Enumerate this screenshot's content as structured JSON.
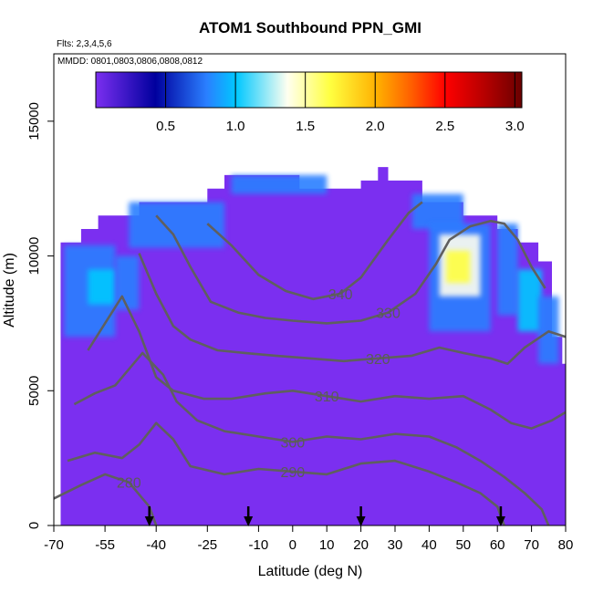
{
  "chart_data": {
    "type": "heatmap",
    "title": "ATOM1 Southbound PPN_GMI",
    "note_flights": "Flts: 2,3,4,5,6",
    "note_dates": "MMDD: 0801,0803,0806,0808,0812",
    "xlabel": "Latitude (deg N)",
    "ylabel": "Altitude (m)",
    "xlim": [
      -70,
      80
    ],
    "ylim": [
      0,
      17500
    ],
    "x_ticks": [
      -70,
      -55,
      -40,
      -25,
      -10,
      0,
      10,
      20,
      30,
      40,
      50,
      60,
      70,
      80
    ],
    "x_tick_labels": [
      "-70",
      "-55",
      "-40",
      "-25",
      "-10",
      "0",
      "10",
      "20",
      "30",
      "40",
      "50",
      "60",
      "70",
      "80"
    ],
    "y_ticks": [
      0,
      5000,
      10000,
      15000
    ],
    "y_tick_labels": [
      "0",
      "5000",
      "10000",
      "15000"
    ],
    "colorbar": {
      "range": [
        0,
        3.05
      ],
      "ticks": [
        0.5,
        1.0,
        1.5,
        2.0,
        2.5,
        3.0
      ],
      "tick_labels": [
        "0.5",
        "1.0",
        "1.5",
        "2.0",
        "2.5",
        "3.0"
      ],
      "colors": [
        "#7b2ff0",
        "#00009e",
        "#2a7fff",
        "#00c8ff",
        "#fffff0",
        "#ffff40",
        "#ffb000",
        "#ff6000",
        "#ff0000",
        "#b00000",
        "#6a0000"
      ]
    },
    "field_outline": [
      [
        -68,
        0
      ],
      [
        -68,
        10500
      ],
      [
        -62,
        10500
      ],
      [
        -62,
        11000
      ],
      [
        -57,
        11000
      ],
      [
        -57,
        11500
      ],
      [
        -45,
        11500
      ],
      [
        -45,
        12000
      ],
      [
        -25,
        12000
      ],
      [
        -25,
        12500
      ],
      [
        -20,
        12500
      ],
      [
        -20,
        13000
      ],
      [
        2,
        13000
      ],
      [
        2,
        12500
      ],
      [
        20,
        12500
      ],
      [
        20,
        12800
      ],
      [
        25,
        12800
      ],
      [
        25,
        13300
      ],
      [
        28,
        13300
      ],
      [
        28,
        12800
      ],
      [
        38,
        12800
      ],
      [
        38,
        12000
      ],
      [
        50,
        12000
      ],
      [
        50,
        11500
      ],
      [
        60,
        11500
      ],
      [
        60,
        11000
      ],
      [
        66,
        11000
      ],
      [
        66,
        10500
      ],
      [
        72,
        10500
      ],
      [
        72,
        9800
      ],
      [
        76,
        9800
      ],
      [
        76,
        7000
      ],
      [
        79,
        7000
      ],
      [
        79,
        6000
      ],
      [
        80,
        6000
      ],
      [
        80,
        0
      ]
    ],
    "high_regions": [
      {
        "x": [
          -67,
          -52
        ],
        "y": [
          7000,
          10400
        ],
        "value": 0.5
      },
      {
        "x": [
          -60,
          -52
        ],
        "y": [
          8200,
          9500
        ],
        "value": 0.9
      },
      {
        "x": [
          -52,
          -45
        ],
        "y": [
          8000,
          10000
        ],
        "value": 0.6
      },
      {
        "x": [
          -48,
          -20
        ],
        "y": [
          10300,
          12000
        ],
        "value": 0.5
      },
      {
        "x": [
          -18,
          10
        ],
        "y": [
          12300,
          13000
        ],
        "value": 0.5
      },
      {
        "x": [
          35,
          50
        ],
        "y": [
          11000,
          12300
        ],
        "value": 0.5
      },
      {
        "x": [
          40,
          58
        ],
        "y": [
          7200,
          11200
        ],
        "value": 0.6
      },
      {
        "x": [
          43,
          55
        ],
        "y": [
          8500,
          10800
        ],
        "value": 1.2
      },
      {
        "x": [
          45,
          52
        ],
        "y": [
          9000,
          10200
        ],
        "value": 1.4
      },
      {
        "x": [
          60,
          66
        ],
        "y": [
          7800,
          11200
        ],
        "value": 0.5
      },
      {
        "x": [
          66,
          73
        ],
        "y": [
          7200,
          9500
        ],
        "value": 0.9
      },
      {
        "x": [
          72,
          78
        ],
        "y": [
          6000,
          8500
        ],
        "value": 0.5
      }
    ],
    "contours": [
      {
        "label": "280",
        "points": [
          [
            -70,
            1000
          ],
          [
            -62,
            1500
          ],
          [
            -55,
            1900
          ],
          [
            -48,
            1600
          ],
          [
            -42,
            700
          ],
          [
            -40,
            0
          ]
        ]
      },
      {
        "label": "290",
        "points": [
          [
            -66,
            2400
          ],
          [
            -58,
            2700
          ],
          [
            -50,
            2500
          ],
          [
            -45,
            3000
          ],
          [
            -40,
            3800
          ],
          [
            -35,
            3200
          ],
          [
            -30,
            2200
          ],
          [
            -20,
            1900
          ],
          [
            -10,
            2100
          ],
          [
            0,
            2000
          ],
          [
            10,
            1900
          ],
          [
            20,
            2300
          ],
          [
            30,
            2400
          ],
          [
            40,
            2000
          ],
          [
            48,
            1600
          ],
          [
            55,
            1200
          ],
          [
            60,
            700
          ],
          [
            62,
            0
          ]
        ]
      },
      {
        "label": "300",
        "points": [
          [
            -64,
            4500
          ],
          [
            -58,
            4900
          ],
          [
            -52,
            5200
          ],
          [
            -48,
            5800
          ],
          [
            -44,
            6400
          ],
          [
            -38,
            5600
          ],
          [
            -34,
            4600
          ],
          [
            -28,
            3900
          ],
          [
            -20,
            3500
          ],
          [
            -10,
            3300
          ],
          [
            0,
            3100
          ],
          [
            10,
            3300
          ],
          [
            20,
            3200
          ],
          [
            30,
            3400
          ],
          [
            40,
            3300
          ],
          [
            48,
            2900
          ],
          [
            55,
            2400
          ],
          [
            62,
            1800
          ],
          [
            68,
            1200
          ],
          [
            73,
            600
          ],
          [
            75,
            0
          ]
        ]
      },
      {
        "label": "310",
        "points": [
          [
            -60,
            6500
          ],
          [
            -55,
            7500
          ],
          [
            -50,
            8500
          ],
          [
            -45,
            7200
          ],
          [
            -40,
            5500
          ],
          [
            -35,
            5000
          ],
          [
            -26,
            4700
          ],
          [
            -18,
            4700
          ],
          [
            -8,
            4900
          ],
          [
            0,
            5000
          ],
          [
            10,
            4800
          ],
          [
            20,
            4600
          ],
          [
            30,
            4800
          ],
          [
            40,
            4700
          ],
          [
            50,
            4800
          ],
          [
            58,
            4300
          ],
          [
            64,
            3800
          ],
          [
            70,
            3600
          ],
          [
            76,
            3900
          ],
          [
            80,
            4200
          ]
        ]
      },
      {
        "label": "320",
        "points": [
          [
            -45,
            10100
          ],
          [
            -40,
            8600
          ],
          [
            -35,
            7400
          ],
          [
            -30,
            6900
          ],
          [
            -22,
            6500
          ],
          [
            -14,
            6400
          ],
          [
            -5,
            6300
          ],
          [
            5,
            6200
          ],
          [
            15,
            6100
          ],
          [
            25,
            6200
          ],
          [
            35,
            6300
          ],
          [
            43,
            6600
          ],
          [
            50,
            6400
          ],
          [
            58,
            6200
          ],
          [
            63,
            6000
          ],
          [
            68,
            6600
          ],
          [
            75,
            7200
          ],
          [
            80,
            7000
          ]
        ]
      },
      {
        "label": "330",
        "points": [
          [
            -40,
            11500
          ],
          [
            -35,
            10800
          ],
          [
            -30,
            9600
          ],
          [
            -24,
            8300
          ],
          [
            -16,
            7900
          ],
          [
            -8,
            7700
          ],
          [
            0,
            7600
          ],
          [
            10,
            7500
          ],
          [
            20,
            7600
          ],
          [
            28,
            7900
          ],
          [
            36,
            8600
          ],
          [
            42,
            9700
          ],
          [
            46,
            10600
          ],
          [
            52,
            11100
          ],
          [
            58,
            11300
          ],
          [
            62,
            11200
          ],
          [
            66,
            10600
          ],
          [
            70,
            9600
          ],
          [
            74,
            8800
          ]
        ]
      },
      {
        "label": "340",
        "points": [
          [
            -25,
            11200
          ],
          [
            -18,
            10400
          ],
          [
            -10,
            9300
          ],
          [
            -2,
            8700
          ],
          [
            6,
            8400
          ],
          [
            14,
            8600
          ],
          [
            20,
            9200
          ],
          [
            28,
            10600
          ],
          [
            34,
            11600
          ],
          [
            38,
            12000
          ]
        ]
      }
    ],
    "flight_arrows": [
      -42,
      -13,
      20,
      61
    ]
  }
}
